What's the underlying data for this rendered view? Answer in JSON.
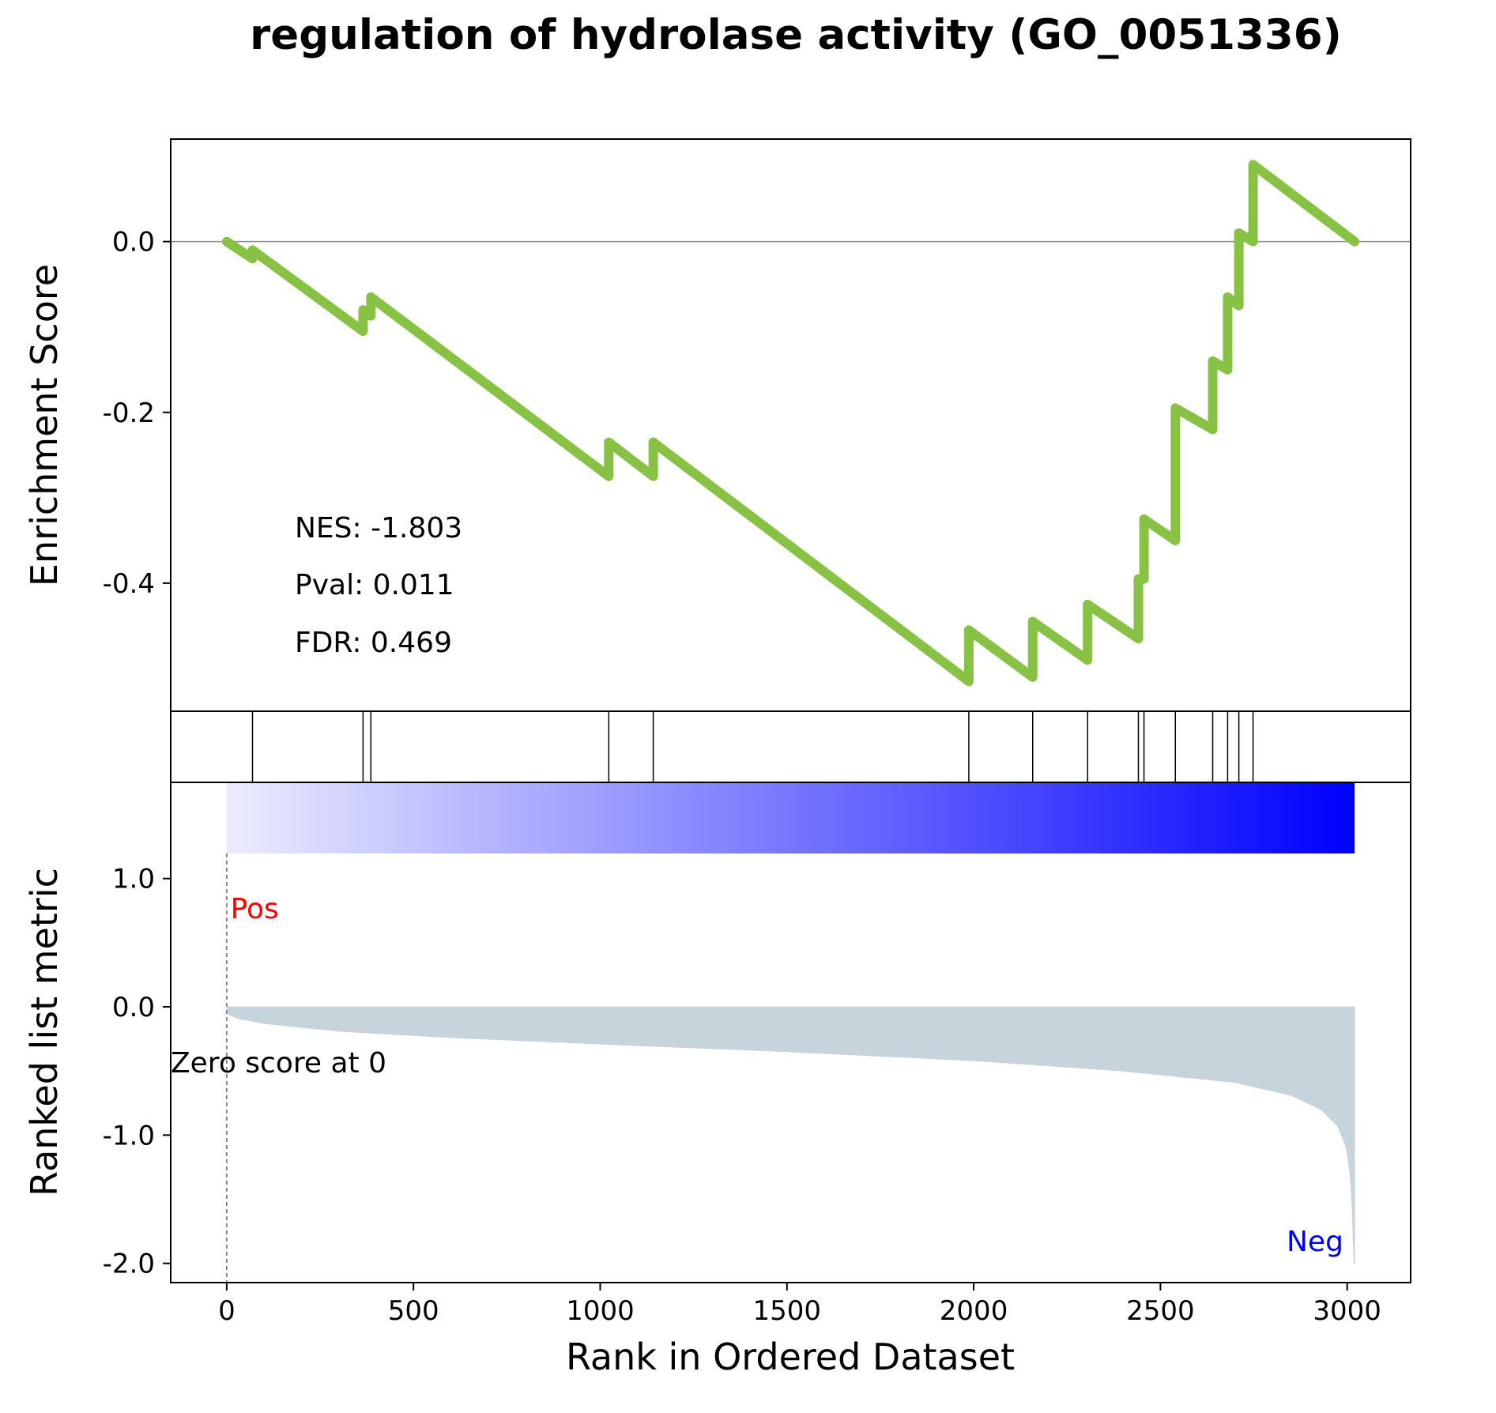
{
  "chart_data": {
    "type": "line",
    "title": "regulation of hydrolase activity (GO_0051336)",
    "es_panel": {
      "ylabel": "Enrichment Score",
      "ylim": [
        -0.55,
        0.12
      ],
      "yticks": [
        0.0,
        -0.2,
        -0.4
      ],
      "ytick_labels": [
        "0.0",
        "-0.2",
        "-0.4"
      ],
      "line_color": "#88c244",
      "points": [
        [
          0,
          0.0
        ],
        [
          69,
          -0.02
        ],
        [
          69,
          -0.01
        ],
        [
          365,
          -0.105
        ],
        [
          365,
          -0.08
        ],
        [
          386,
          -0.087
        ],
        [
          386,
          -0.065
        ],
        [
          1023,
          -0.275
        ],
        [
          1023,
          -0.235
        ],
        [
          1142,
          -0.275
        ],
        [
          1142,
          -0.235
        ],
        [
          1987,
          -0.515
        ],
        [
          1987,
          -0.455
        ],
        [
          2158,
          -0.51
        ],
        [
          2158,
          -0.445
        ],
        [
          2305,
          -0.49
        ],
        [
          2305,
          -0.425
        ],
        [
          2441,
          -0.465
        ],
        [
          2441,
          -0.395
        ],
        [
          2456,
          -0.395
        ],
        [
          2456,
          -0.325
        ],
        [
          2540,
          -0.35
        ],
        [
          2540,
          -0.195
        ],
        [
          2640,
          -0.22
        ],
        [
          2640,
          -0.14
        ],
        [
          2680,
          -0.15
        ],
        [
          2680,
          -0.065
        ],
        [
          2710,
          -0.075
        ],
        [
          2710,
          0.01
        ],
        [
          2748,
          0.0
        ],
        [
          2748,
          0.09
        ],
        [
          3020,
          0.0
        ]
      ],
      "stats": [
        "NES: -1.803",
        "Pval: 0.011",
        "FDR: 0.469"
      ]
    },
    "hits": [
      69,
      365,
      386,
      1023,
      1142,
      1987,
      2158,
      2305,
      2441,
      2456,
      2540,
      2640,
      2680,
      2710,
      2748
    ],
    "rank_panel": {
      "ylabel": "Ranked list metric",
      "xlabel": "Rank in Ordered Dataset",
      "xlim": [
        -150,
        3170
      ],
      "ylim": [
        -2.15,
        1.75
      ],
      "xticks": [
        0,
        500,
        1000,
        1500,
        2000,
        2500,
        3000
      ],
      "xtick_labels": [
        "0",
        "500",
        "1000",
        "1500",
        "2000",
        "2500",
        "3000"
      ],
      "yticks": [
        1.0,
        0.0,
        -1.0,
        -2.0
      ],
      "ytick_labels": [
        "1.0",
        "0.0",
        "-1.0",
        "-2.0"
      ],
      "fill_color": "#c8d4dc",
      "gradient_colors": [
        "#ececff",
        "#0000ff"
      ],
      "profile": [
        [
          0,
          0.0
        ],
        [
          5,
          -0.06
        ],
        [
          30,
          -0.09
        ],
        [
          100,
          -0.13
        ],
        [
          300,
          -0.19
        ],
        [
          600,
          -0.24
        ],
        [
          1000,
          -0.29
        ],
        [
          1500,
          -0.35
        ],
        [
          2000,
          -0.42
        ],
        [
          2400,
          -0.5
        ],
        [
          2700,
          -0.59
        ],
        [
          2850,
          -0.69
        ],
        [
          2930,
          -0.8
        ],
        [
          2975,
          -0.93
        ],
        [
          2998,
          -1.1
        ],
        [
          3008,
          -1.3
        ],
        [
          3014,
          -1.6
        ],
        [
          3018,
          -2.0
        ],
        [
          3020,
          -2.0
        ],
        [
          3020,
          0.0
        ]
      ],
      "pos_label": "Pos",
      "neg_label": "Neg",
      "pos_color": "#ff0000",
      "neg_color": "#0000ff",
      "zero_label": "Zero score at 0",
      "zero_rank": 0
    }
  }
}
